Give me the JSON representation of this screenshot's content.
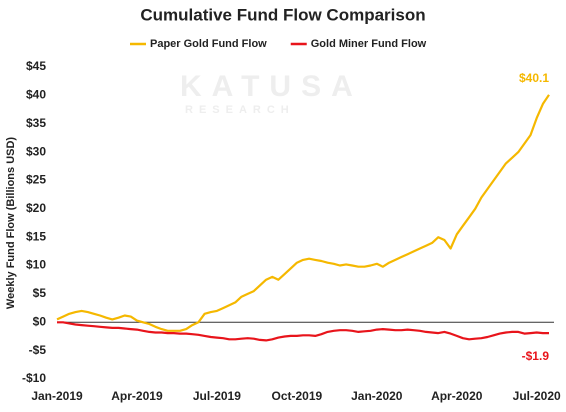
{
  "chart_data": {
    "type": "line",
    "title": "Cumulative Fund Flow Comparison",
    "y_label": "Weekly Fund Flow (Billions USD)",
    "watermark": [
      "KATUSA",
      "RESEARCH"
    ],
    "categories": [
      "Jan-2019",
      null,
      null,
      null,
      null,
      null,
      null,
      null,
      null,
      null,
      null,
      null,
      null,
      "Apr-2019",
      null,
      null,
      null,
      null,
      null,
      null,
      null,
      null,
      null,
      null,
      null,
      null,
      "Jul-2019",
      null,
      null,
      null,
      null,
      null,
      null,
      null,
      null,
      null,
      null,
      null,
      null,
      "Oct-2019",
      null,
      null,
      null,
      null,
      null,
      null,
      null,
      null,
      null,
      null,
      null,
      null,
      "Jan-2020",
      null,
      null,
      null,
      null,
      null,
      null,
      null,
      null,
      null,
      null,
      null,
      null,
      "Apr-2020",
      null,
      null,
      null,
      null,
      null,
      null,
      null,
      null,
      null,
      null,
      null,
      null,
      "Jul-2020",
      null,
      null
    ],
    "series": [
      {
        "name": "Paper Gold Fund Flow",
        "color": "#f5b800",
        "values": [
          0.5,
          1,
          1.5,
          1.8,
          2,
          1.8,
          1.5,
          1.2,
          0.8,
          0.5,
          0.8,
          1.2,
          1.0,
          0.3,
          0,
          -0.3,
          -0.8,
          -1.2,
          -1.5,
          -1.5,
          -1.5,
          -1.2,
          -0.5,
          0,
          1.5,
          1.8,
          2,
          2.5,
          3,
          3.5,
          4.5,
          5,
          5.5,
          6.5,
          7.5,
          8,
          7.5,
          8.5,
          9.5,
          10.5,
          11,
          11.2,
          11,
          10.8,
          10.5,
          10.3,
          10,
          10.2,
          10,
          9.8,
          9.8,
          10,
          10.3,
          9.8,
          10.5,
          11,
          11.5,
          12,
          12.5,
          13,
          13.5,
          14,
          15,
          14.5,
          13,
          15.5,
          17,
          18.5,
          20,
          22,
          23.5,
          25,
          26.5,
          28,
          29,
          30,
          31.5,
          33,
          36,
          38.5,
          40.1
        ],
        "value_labels": [
          null,
          null,
          null,
          null,
          null,
          null,
          null,
          null,
          null,
          null,
          null,
          null,
          null,
          null,
          null,
          null,
          null,
          null,
          null,
          null,
          null,
          null,
          null,
          null,
          null,
          null,
          null,
          null,
          null,
          null,
          null,
          null,
          null,
          null,
          null,
          null,
          null,
          null,
          null,
          null,
          null,
          null,
          null,
          null,
          null,
          null,
          null,
          null,
          null,
          null,
          null,
          null,
          null,
          null,
          null,
          null,
          null,
          null,
          null,
          null,
          null,
          null,
          null,
          null,
          null,
          null,
          null,
          null,
          null,
          null,
          null,
          null,
          null,
          null,
          null,
          null,
          null,
          null,
          null,
          null,
          "$40.1"
        ]
      },
      {
        "name": "Gold Miner Fund Flow",
        "color": "#e8141b",
        "values": [
          0,
          0,
          -0.2,
          -0.4,
          -0.5,
          -0.6,
          -0.7,
          -0.8,
          -0.9,
          -1,
          -1,
          -1.1,
          -1.2,
          -1.3,
          -1.5,
          -1.7,
          -1.8,
          -1.8,
          -1.9,
          -1.9,
          -2,
          -2,
          -2.1,
          -2.2,
          -2.4,
          -2.6,
          -2.7,
          -2.8,
          -3,
          -3,
          -2.9,
          -2.8,
          -2.9,
          -3.1,
          -3.2,
          -3,
          -2.7,
          -2.5,
          -2.4,
          -2.4,
          -2.3,
          -2.3,
          -2.4,
          -2.1,
          -1.7,
          -1.5,
          -1.4,
          -1.4,
          -1.5,
          -1.7,
          -1.6,
          -1.5,
          -1.3,
          -1.2,
          -1.3,
          -1.4,
          -1.4,
          -1.3,
          -1.4,
          -1.5,
          -1.7,
          -1.8,
          -1.9,
          -1.7,
          -2,
          -2.4,
          -2.8,
          -3,
          -2.9,
          -2.8,
          -2.6,
          -2.3,
          -2,
          -1.8,
          -1.7,
          -1.7,
          -2,
          -1.9,
          -1.8,
          -1.9,
          -1.9
        ],
        "value_labels": [
          null,
          null,
          null,
          null,
          null,
          null,
          null,
          null,
          null,
          null,
          null,
          null,
          null,
          null,
          null,
          null,
          null,
          null,
          null,
          null,
          null,
          null,
          null,
          null,
          null,
          null,
          null,
          null,
          null,
          null,
          null,
          null,
          null,
          null,
          null,
          null,
          null,
          null,
          null,
          null,
          null,
          null,
          null,
          null,
          null,
          null,
          null,
          null,
          null,
          null,
          null,
          null,
          null,
          null,
          null,
          null,
          null,
          null,
          null,
          null,
          null,
          null,
          null,
          null,
          null,
          null,
          null,
          null,
          null,
          null,
          null,
          null,
          null,
          null,
          null,
          null,
          null,
          null,
          null,
          null,
          "-$1.9"
        ]
      }
    ],
    "ylim": [
      -10,
      45
    ],
    "yticks": [
      {
        "value": -10,
        "label": "-$10"
      },
      {
        "value": -5,
        "label": "-$5"
      },
      {
        "value": 0,
        "label": "$0"
      },
      {
        "value": 5,
        "label": "$5"
      },
      {
        "value": 10,
        "label": "$10"
      },
      {
        "value": 15,
        "label": "$15"
      },
      {
        "value": 20,
        "label": "$20"
      },
      {
        "value": 25,
        "label": "$25"
      },
      {
        "value": 30,
        "label": "$30"
      },
      {
        "value": 35,
        "label": "$35"
      },
      {
        "value": 40,
        "label": "$40"
      },
      {
        "value": 45,
        "label": "$45"
      }
    ],
    "zero_line": true,
    "grid": false
  }
}
